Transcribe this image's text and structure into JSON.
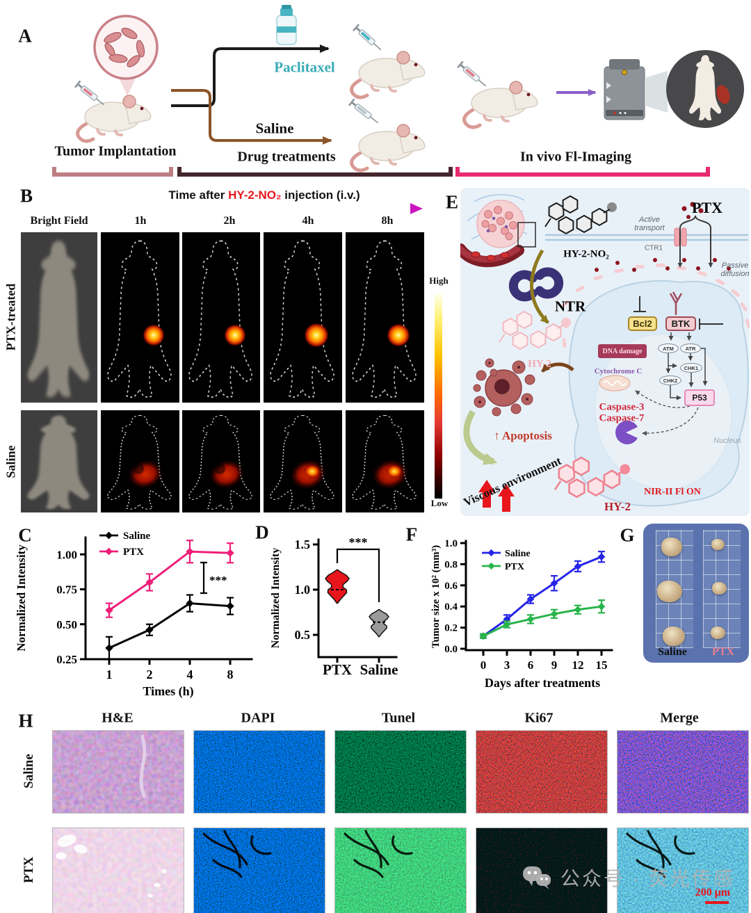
{
  "panels": {
    "a": {
      "label": "A",
      "arm1": "Paclitaxel",
      "arm2": "Saline",
      "stage1": "Tumor Implantation",
      "stage2": "Drug treatments",
      "stage3": "In vivo Fl-Imaging"
    },
    "b": {
      "label": "B",
      "header_pre": "Time after ",
      "header_probe": "HY-2-NO₂",
      "header_post": " injection (i.v.)",
      "columns": [
        "Bright Field",
        "1h",
        "2h",
        "4h",
        "8h"
      ],
      "row1": "PTX-treated",
      "row2": "Saline",
      "colorbar_high": "High",
      "colorbar_low": "Low"
    },
    "c": {
      "label": "C"
    },
    "d": {
      "label": "D"
    },
    "e": {
      "label": "E",
      "probe": "HY-2-NO₂",
      "active_transport": "Active transport",
      "ctr1": "CTR1",
      "ptx": "PTX",
      "passive_diffusion": "Passive diffusion",
      "ntr": "NTR",
      "hy2_faded": "HY-2",
      "bcl2": "Bcl2",
      "btk": "BTK",
      "dna_damage": "DNA damage",
      "atm": "ATM",
      "atr": "ATR",
      "chk1": "CHK1",
      "chk2": "CHK2",
      "p53": "P53",
      "cytochrome": "Cytochrome C",
      "caspase3": "Caspase-3",
      "caspase7": "Caspase-7",
      "apoptosis": "↑ Apoptosis",
      "viscous": "Viscous environment",
      "hy2": "HY-2",
      "nir": "NIR-II Fl ON",
      "nucleus": "Nucleus"
    },
    "f": {
      "label": "F"
    },
    "g": {
      "label": "G",
      "col1": "Saline",
      "col2": "PTX"
    },
    "h": {
      "label": "H",
      "columns": [
        "H&E",
        "DAPI",
        "Tunel",
        "Ki67",
        "Merge"
      ],
      "row1": "Saline",
      "row2": "PTX"
    }
  },
  "watermark": {
    "icon": "wechat-icon",
    "text": "公众号 · 荧光传感",
    "scalebar": "200 μm"
  },
  "chart_data": [
    {
      "type": "line",
      "panel": "C",
      "categories": [
        "1",
        "2",
        "4",
        "8"
      ],
      "xlabel": "Times (h)",
      "ylabel": "Normalized Intensity",
      "yticks": [
        0.25,
        0.5,
        0.75,
        1.0
      ],
      "ylim": [
        0.25,
        1.15
      ],
      "legend_position": "top-left",
      "significance": "***",
      "series": [
        {
          "name": "Saline",
          "color": "#000000",
          "values": [
            0.33,
            0.46,
            0.65,
            0.63
          ],
          "errors": [
            0.08,
            0.04,
            0.06,
            0.06
          ]
        },
        {
          "name": "PTX",
          "color": "#ee1e79",
          "values": [
            0.6,
            0.8,
            1.02,
            1.01
          ],
          "errors": [
            0.05,
            0.06,
            0.08,
            0.07
          ]
        }
      ]
    },
    {
      "type": "violin",
      "panel": "D",
      "ylabel": "Normalized Intensity",
      "yticks": [
        0.5,
        1.0,
        1.5
      ],
      "ylim": [
        0.4,
        1.55
      ],
      "significance": "***",
      "groups": [
        {
          "name": "PTX",
          "color": "#e8151d",
          "min": 0.85,
          "max": 1.22,
          "median": 1.0
        },
        {
          "name": "Saline",
          "color": "#9a9a9a",
          "min": 0.48,
          "max": 0.78,
          "median": 0.64
        }
      ]
    },
    {
      "type": "line",
      "panel": "F",
      "categories": [
        "0",
        "3",
        "6",
        "9",
        "12",
        "15"
      ],
      "xlabel": "Days after treatments",
      "ylabel": "Tumor size x 10² (mm³)",
      "yticks": [
        0.0,
        0.2,
        0.4,
        0.6,
        0.8,
        1.0
      ],
      "ylim": [
        0,
        1.0
      ],
      "legend_position": "top-left",
      "series": [
        {
          "name": "Saline",
          "color": "#2525e8",
          "values": [
            0.12,
            0.28,
            0.47,
            0.62,
            0.78,
            0.87
          ],
          "errors": [
            0.02,
            0.04,
            0.04,
            0.07,
            0.05,
            0.05
          ]
        },
        {
          "name": "PTX",
          "color": "#28b44b",
          "values": [
            0.12,
            0.23,
            0.28,
            0.33,
            0.37,
            0.4
          ],
          "errors": [
            0.02,
            0.03,
            0.04,
            0.04,
            0.04,
            0.06
          ]
        }
      ]
    }
  ]
}
